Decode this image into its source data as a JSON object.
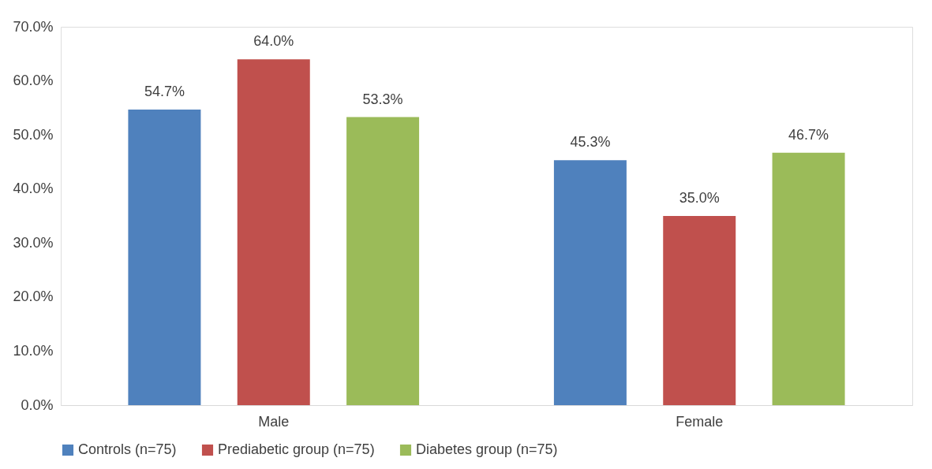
{
  "chart_data": {
    "type": "bar",
    "categories": [
      "Male",
      "Female"
    ],
    "series": [
      {
        "name": "Controls (n=75)",
        "color": "#4f81bd",
        "values": [
          54.7,
          45.3
        ],
        "value_labels": [
          "54.7%",
          "45.3%"
        ]
      },
      {
        "name": "Prediabetic group (n=75)",
        "color": "#c0504d",
        "values": [
          64.0,
          35.0
        ],
        "value_labels": [
          "64.0%",
          "35.0%"
        ]
      },
      {
        "name": "Diabetes group (n=75)",
        "color": "#9bbb59",
        "values": [
          53.3,
          46.7
        ],
        "value_labels": [
          "53.3%",
          "46.7%"
        ]
      }
    ],
    "ylim": [
      0,
      70
    ],
    "yticks": [
      {
        "value": 0,
        "label": "0.0%"
      },
      {
        "value": 10,
        "label": "10.0%"
      },
      {
        "value": 20,
        "label": "20.0%"
      },
      {
        "value": 30,
        "label": "30.0%"
      },
      {
        "value": 40,
        "label": "40.0%"
      },
      {
        "value": 50,
        "label": "50.0%"
      },
      {
        "value": 60,
        "label": "60.0%"
      },
      {
        "value": 70,
        "label": "70.0%"
      }
    ],
    "grid": false,
    "legend": "bottom"
  }
}
